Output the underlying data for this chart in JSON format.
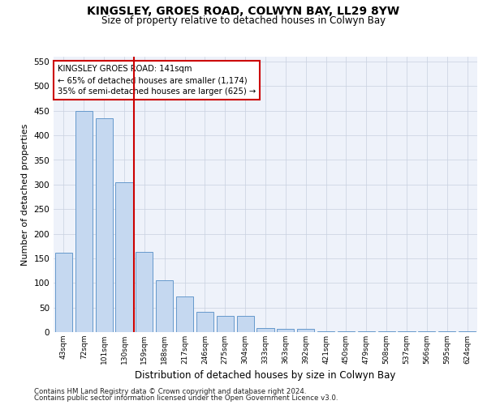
{
  "title": "KINGSLEY, GROES ROAD, COLWYN BAY, LL29 8YW",
  "subtitle": "Size of property relative to detached houses in Colwyn Bay",
  "xlabel": "Distribution of detached houses by size in Colwyn Bay",
  "ylabel": "Number of detached properties",
  "categories": [
    "43sqm",
    "72sqm",
    "101sqm",
    "130sqm",
    "159sqm",
    "188sqm",
    "217sqm",
    "246sqm",
    "275sqm",
    "304sqm",
    "333sqm",
    "363sqm",
    "392sqm",
    "421sqm",
    "450sqm",
    "479sqm",
    "508sqm",
    "537sqm",
    "566sqm",
    "595sqm",
    "624sqm"
  ],
  "values": [
    162,
    450,
    435,
    305,
    163,
    105,
    72,
    42,
    33,
    33,
    9,
    7,
    7,
    2,
    1,
    1,
    1,
    1,
    1,
    1,
    1
  ],
  "bar_color": "#c5d8f0",
  "bar_edge_color": "#6699cc",
  "vline_x": 3.5,
  "vline_color": "#cc0000",
  "annotation_text": "KINGSLEY GROES ROAD: 141sqm\n← 65% of detached houses are smaller (1,174)\n35% of semi-detached houses are larger (625) →",
  "annotation_box_color": "#ffffff",
  "annotation_box_edge_color": "#cc0000",
  "ylim": [
    0,
    560
  ],
  "yticks": [
    0,
    50,
    100,
    150,
    200,
    250,
    300,
    350,
    400,
    450,
    500,
    550
  ],
  "bg_color": "#eef2fa",
  "footer1": "Contains HM Land Registry data © Crown copyright and database right 2024.",
  "footer2": "Contains public sector information licensed under the Open Government Licence v3.0."
}
